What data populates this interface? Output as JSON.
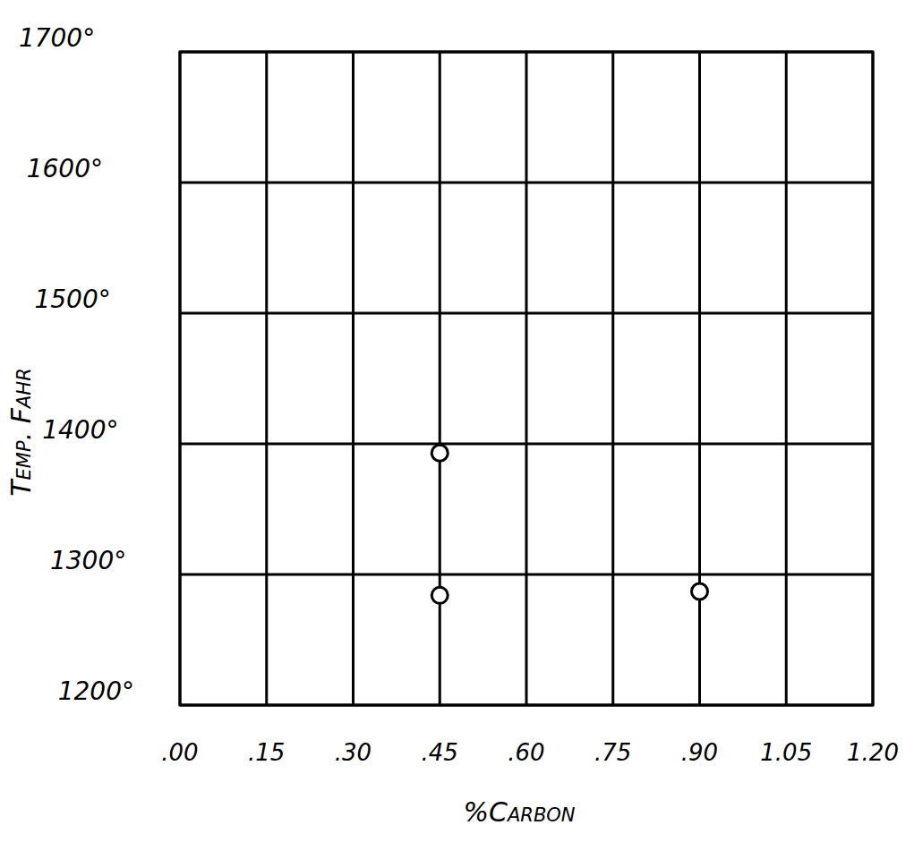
{
  "chart_data": {
    "type": "scatter",
    "x_label": "%Carbon",
    "y_label": "Temp. Fahr",
    "x": [
      0.45,
      0.45,
      0.9
    ],
    "values": [
      1393,
      1284,
      1287
    ],
    "marker": "circle",
    "color": "#000000",
    "grid": true,
    "xlim": [
      0,
      1.2
    ],
    "xticks": [
      {
        "value": 0,
        "label": ".00"
      },
      {
        "value": 0.15,
        "label": ".15"
      },
      {
        "value": 0.3,
        "label": ".30"
      },
      {
        "value": 0.45,
        "label": ".45"
      },
      {
        "value": 0.6,
        "label": ".60"
      },
      {
        "value": 0.75,
        "label": ".75"
      },
      {
        "value": 0.9,
        "label": ".90"
      },
      {
        "value": 1.05,
        "label": "1.05"
      },
      {
        "value": 1.2,
        "label": "1.20"
      }
    ],
    "ylim": [
      1200,
      1700
    ],
    "yticks": [
      {
        "value": 1200,
        "label": "1200°"
      },
      {
        "value": 1300,
        "label": "1300°"
      },
      {
        "value": 1400,
        "label": "1400°"
      },
      {
        "value": 1500,
        "label": "1500°"
      },
      {
        "value": 1600,
        "label": "1600°"
      },
      {
        "value": 1700,
        "label": "1700°"
      }
    ]
  }
}
